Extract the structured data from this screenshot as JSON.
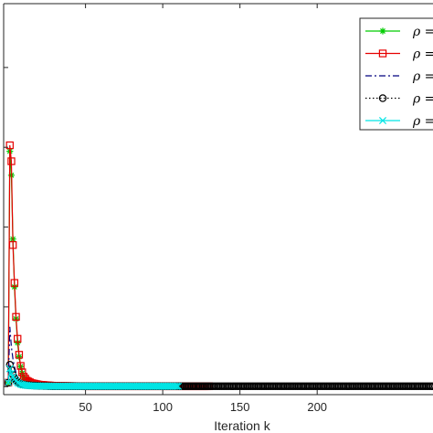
{
  "chart_data": {
    "type": "line",
    "title": "",
    "xlabel": "Iteration k",
    "ylabel": "",
    "xlim": [
      -3,
      275
    ],
    "ylim": [
      -0.2,
      9.6
    ],
    "xticks": [
      50,
      100,
      150,
      200
    ],
    "grid": false,
    "legend_position": "top-right",
    "series": [
      {
        "name": "ρ = ",
        "color": "#00cc00",
        "linestyle": "solid",
        "marker": "asterisk",
        "x": [
          0,
          1,
          2,
          3,
          4,
          5,
          6,
          7,
          8,
          9,
          10,
          12,
          15,
          20,
          30,
          50,
          80,
          110
        ],
        "y": [
          0.1,
          5.9,
          5.3,
          3.7,
          2.5,
          1.7,
          1.1,
          0.75,
          0.5,
          0.34,
          0.24,
          0.14,
          0.08,
          0.04,
          0.02,
          0.01,
          0.01,
          0.01
        ]
      },
      {
        "name": "ρ = ",
        "color": "#e60000",
        "linestyle": "solid",
        "marker": "square",
        "x": [
          0,
          1,
          2,
          3,
          4,
          5,
          6,
          7,
          8,
          9,
          10,
          12,
          15,
          20,
          30,
          50,
          80,
          110,
          130
        ],
        "y": [
          0.1,
          6.05,
          5.65,
          3.55,
          2.6,
          1.75,
          1.2,
          0.8,
          0.52,
          0.36,
          0.25,
          0.15,
          0.09,
          0.05,
          0.02,
          0.01,
          0.01,
          0.01,
          0.01
        ]
      },
      {
        "name": "ρ = ",
        "color": "#00007f",
        "linestyle": "dashdot",
        "marker": "none",
        "x": [
          0,
          1,
          2,
          3,
          4,
          5,
          6,
          7,
          8,
          10,
          12,
          15,
          20,
          30,
          50,
          100
        ],
        "y": [
          0.1,
          1.5,
          1.0,
          0.7,
          0.5,
          0.35,
          0.25,
          0.18,
          0.13,
          0.08,
          0.05,
          0.03,
          0.02,
          0.01,
          0.01,
          0.01
        ]
      },
      {
        "name": "ρ = ",
        "color": "#000000",
        "linestyle": "dotted",
        "marker": "circle",
        "x": [
          0,
          1,
          2,
          3,
          4,
          5,
          6,
          7,
          8,
          10,
          12,
          15,
          20,
          30,
          50,
          100,
          150,
          200,
          275
        ],
        "y": [
          0.1,
          0.55,
          0.42,
          0.3,
          0.22,
          0.16,
          0.12,
          0.09,
          0.07,
          0.05,
          0.04,
          0.03,
          0.02,
          0.01,
          0.01,
          0.01,
          0.01,
          0.01,
          0.01
        ]
      },
      {
        "name": "ρ = ",
        "color": "#00e5e5",
        "linestyle": "solid",
        "marker": "x",
        "x": [
          0,
          1,
          2,
          3,
          4,
          5,
          6,
          7,
          8,
          10,
          12,
          15,
          20,
          30,
          50,
          80,
          110
        ],
        "y": [
          0.1,
          0.45,
          0.33,
          0.25,
          0.19,
          0.14,
          0.1,
          0.08,
          0.06,
          0.04,
          0.03,
          0.02,
          0.015,
          0.01,
          0.01,
          0.01,
          0.01
        ]
      }
    ]
  }
}
